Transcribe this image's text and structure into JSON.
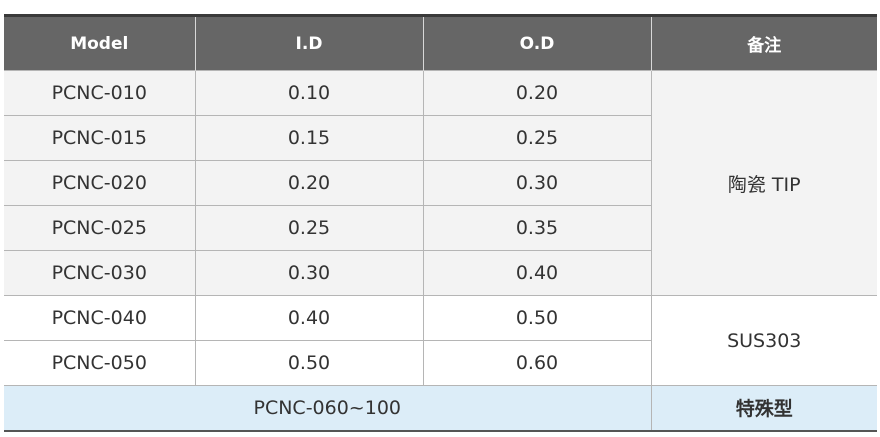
{
  "headers": [
    "Model",
    "I.D",
    "O.D",
    "备注"
  ],
  "rows": [
    {
      "model": "PCNC-010",
      "id": "0.10",
      "od": "0.20"
    },
    {
      "model": "PCNC-015",
      "id": "0.15",
      "od": "0.25"
    },
    {
      "model": "PCNC-020",
      "id": "0.20",
      "od": "0.30"
    },
    {
      "model": "PCNC-025",
      "id": "0.25",
      "od": "0.35"
    },
    {
      "model": "PCNC-030",
      "id": "0.30",
      "od": "0.40"
    },
    {
      "model": "PCNC-040",
      "id": "0.40",
      "od": "0.50"
    },
    {
      "model": "PCNC-050",
      "id": "0.50",
      "od": "0.60"
    }
  ],
  "remarks": {
    "ceramic": "陶瓷 TIP",
    "sus": "SUS303",
    "special": "特殊型"
  },
  "special_row": {
    "model_range": "PCNC-060~100"
  }
}
